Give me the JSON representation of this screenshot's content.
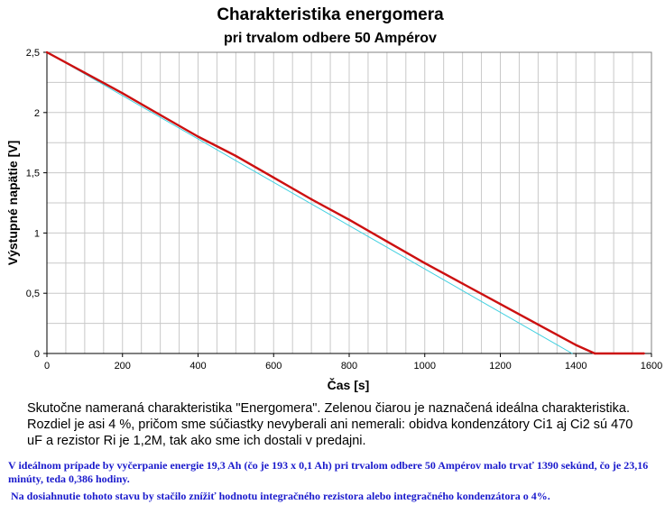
{
  "title": "Charakteristika energomera",
  "subtitle": "pri trvalom odbere 50 Ampérov",
  "caption": "Skutočne nameraná charakteristika \"Energomera\". Zelenou čiarou je naznačená ideálna charakteristika. Rozdiel je asi 4 %, pričom sme súčiastky nevyberali ani nemerali: obidva kondenzátory Ci1 aj Ci2 sú 470 uF a rezistor Ri je 1,2M, tak ako sme ich dostali v predajni.",
  "note1": "V ideálnom prípade by vyčerpanie energie 19,3 Ah (čo je 193 x 0,1 Ah) pri trvalom odbere 50 Ampérov malo trvať 1390 sekúnd, čo je 23,16 minúty, teda 0,386 hodiny.",
  "note2": "Na dosiahnutie tohoto stavu by stačilo znížiť hodnotu integračného rezistora alebo integračného kondenzátora o 4%.",
  "chart_data": {
    "type": "line",
    "title": "Charakteristika energomera",
    "subtitle": "pri trvalom odbere 50 Ampérov",
    "xlabel": "Čas [s]",
    "ylabel": "Výstupné napätie [V]",
    "xlim": [
      0,
      1600
    ],
    "ylim": [
      0,
      2.5
    ],
    "xticks": [
      0,
      200,
      400,
      600,
      800,
      1000,
      1200,
      1400,
      1600
    ],
    "yticks": [
      0,
      0.5,
      1,
      1.5,
      2,
      2.5
    ],
    "xtick_labels": [
      "0",
      "200",
      "400",
      "600",
      "800",
      "1000",
      "1200",
      "1400",
      "1600"
    ],
    "ytick_labels": [
      "0",
      "0,5",
      "1",
      "1,5",
      "2",
      "2,5"
    ],
    "grid": true,
    "series": [
      {
        "color": "#cc1010",
        "x": [
          0,
          100,
          200,
          300,
          400,
          500,
          600,
          700,
          800,
          900,
          1000,
          1100,
          1200,
          1300,
          1400,
          1450,
          1580
        ],
        "y": [
          2.5,
          2.33,
          2.16,
          1.98,
          1.8,
          1.64,
          1.46,
          1.28,
          1.11,
          0.93,
          0.75,
          0.58,
          0.41,
          0.24,
          0.07,
          0.0,
          0.0
        ]
      },
      {
        "color": "#40d0e0",
        "x": [
          0,
          1390
        ],
        "y": [
          2.5,
          0.0
        ]
      }
    ]
  }
}
